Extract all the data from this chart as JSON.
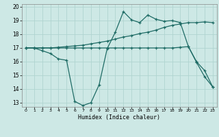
{
  "xlabel": "Humidex (Indice chaleur)",
  "xlim": [
    -0.5,
    23.5
  ],
  "ylim": [
    12.7,
    20.2
  ],
  "yticks": [
    13,
    14,
    15,
    16,
    17,
    18,
    19,
    20
  ],
  "xticks": [
    0,
    1,
    2,
    3,
    4,
    5,
    6,
    7,
    8,
    9,
    10,
    11,
    12,
    13,
    14,
    15,
    16,
    17,
    18,
    19,
    20,
    21,
    22,
    23
  ],
  "bg_color": "#cde8e5",
  "grid_color": "#b0d4d0",
  "line_color": "#1e6b65",
  "line1_x": [
    0,
    1,
    2,
    3,
    4,
    5,
    6,
    7,
    8,
    9,
    10,
    11,
    12,
    13,
    14,
    15,
    16,
    17,
    18,
    19,
    20,
    21,
    22,
    23
  ],
  "line1_y": [
    17.0,
    17.0,
    16.8,
    16.6,
    16.2,
    16.1,
    13.1,
    12.8,
    13.0,
    14.3,
    16.95,
    18.15,
    19.65,
    19.05,
    18.85,
    19.4,
    19.1,
    18.95,
    19.0,
    18.85,
    17.1,
    15.95,
    14.9,
    14.15
  ],
  "line2_x": [
    0,
    1,
    2,
    3,
    4,
    5,
    6,
    7,
    8,
    9,
    10,
    11,
    12,
    13,
    14,
    15,
    16,
    17,
    18,
    19,
    20,
    21,
    22,
    23
  ],
  "line2_y": [
    17.0,
    17.0,
    17.0,
    17.0,
    17.05,
    17.1,
    17.15,
    17.2,
    17.3,
    17.4,
    17.5,
    17.65,
    17.8,
    17.9,
    18.05,
    18.15,
    18.3,
    18.5,
    18.65,
    18.75,
    18.85,
    18.85,
    18.9,
    18.85
  ],
  "line3_x": [
    0,
    1,
    2,
    3,
    4,
    5,
    6,
    7,
    8,
    9,
    10,
    11,
    12,
    13,
    14,
    15,
    16,
    17,
    18,
    19,
    20,
    21,
    22,
    23
  ],
  "line3_y": [
    17.0,
    17.0,
    17.0,
    17.0,
    17.0,
    17.0,
    17.0,
    17.0,
    17.0,
    17.0,
    17.0,
    17.0,
    17.0,
    17.0,
    17.0,
    17.0,
    17.0,
    17.0,
    17.0,
    17.05,
    17.1,
    16.0,
    15.35,
    14.15
  ]
}
